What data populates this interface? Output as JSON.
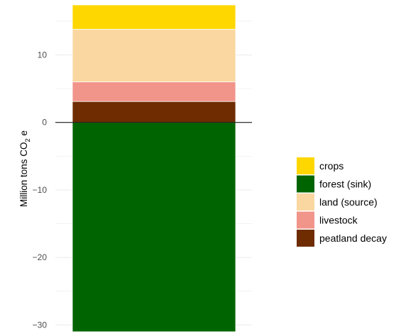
{
  "chart_data": {
    "type": "bar",
    "stacked": true,
    "categories": [
      ""
    ],
    "ylabel_main": "Million tons CO",
    "ylabel_sub": "2",
    "ylabel_tail": " e",
    "ylim": [
      -31,
      17.5
    ],
    "yticks": [
      -30,
      -20,
      -10,
      0,
      10
    ],
    "ytick_labels": [
      "−30",
      "−20",
      "−10",
      "0",
      "10"
    ],
    "grid": true,
    "legend_position": "right",
    "series": [
      {
        "name": "forest (sink)",
        "value": -31,
        "color": "#006400"
      },
      {
        "name": "peatland decay",
        "value": 3.1,
        "color": "#6E2C00"
      },
      {
        "name": "livestock",
        "value": 2.9,
        "color": "#F1948A"
      },
      {
        "name": "land (source)",
        "value": 7.8,
        "color": "#FAD7A0"
      },
      {
        "name": "crops",
        "value": 3.6,
        "color": "#FFD700"
      }
    ],
    "legend_order": [
      "crops",
      "forest (sink)",
      "land (source)",
      "livestock",
      "peatland decay"
    ]
  }
}
